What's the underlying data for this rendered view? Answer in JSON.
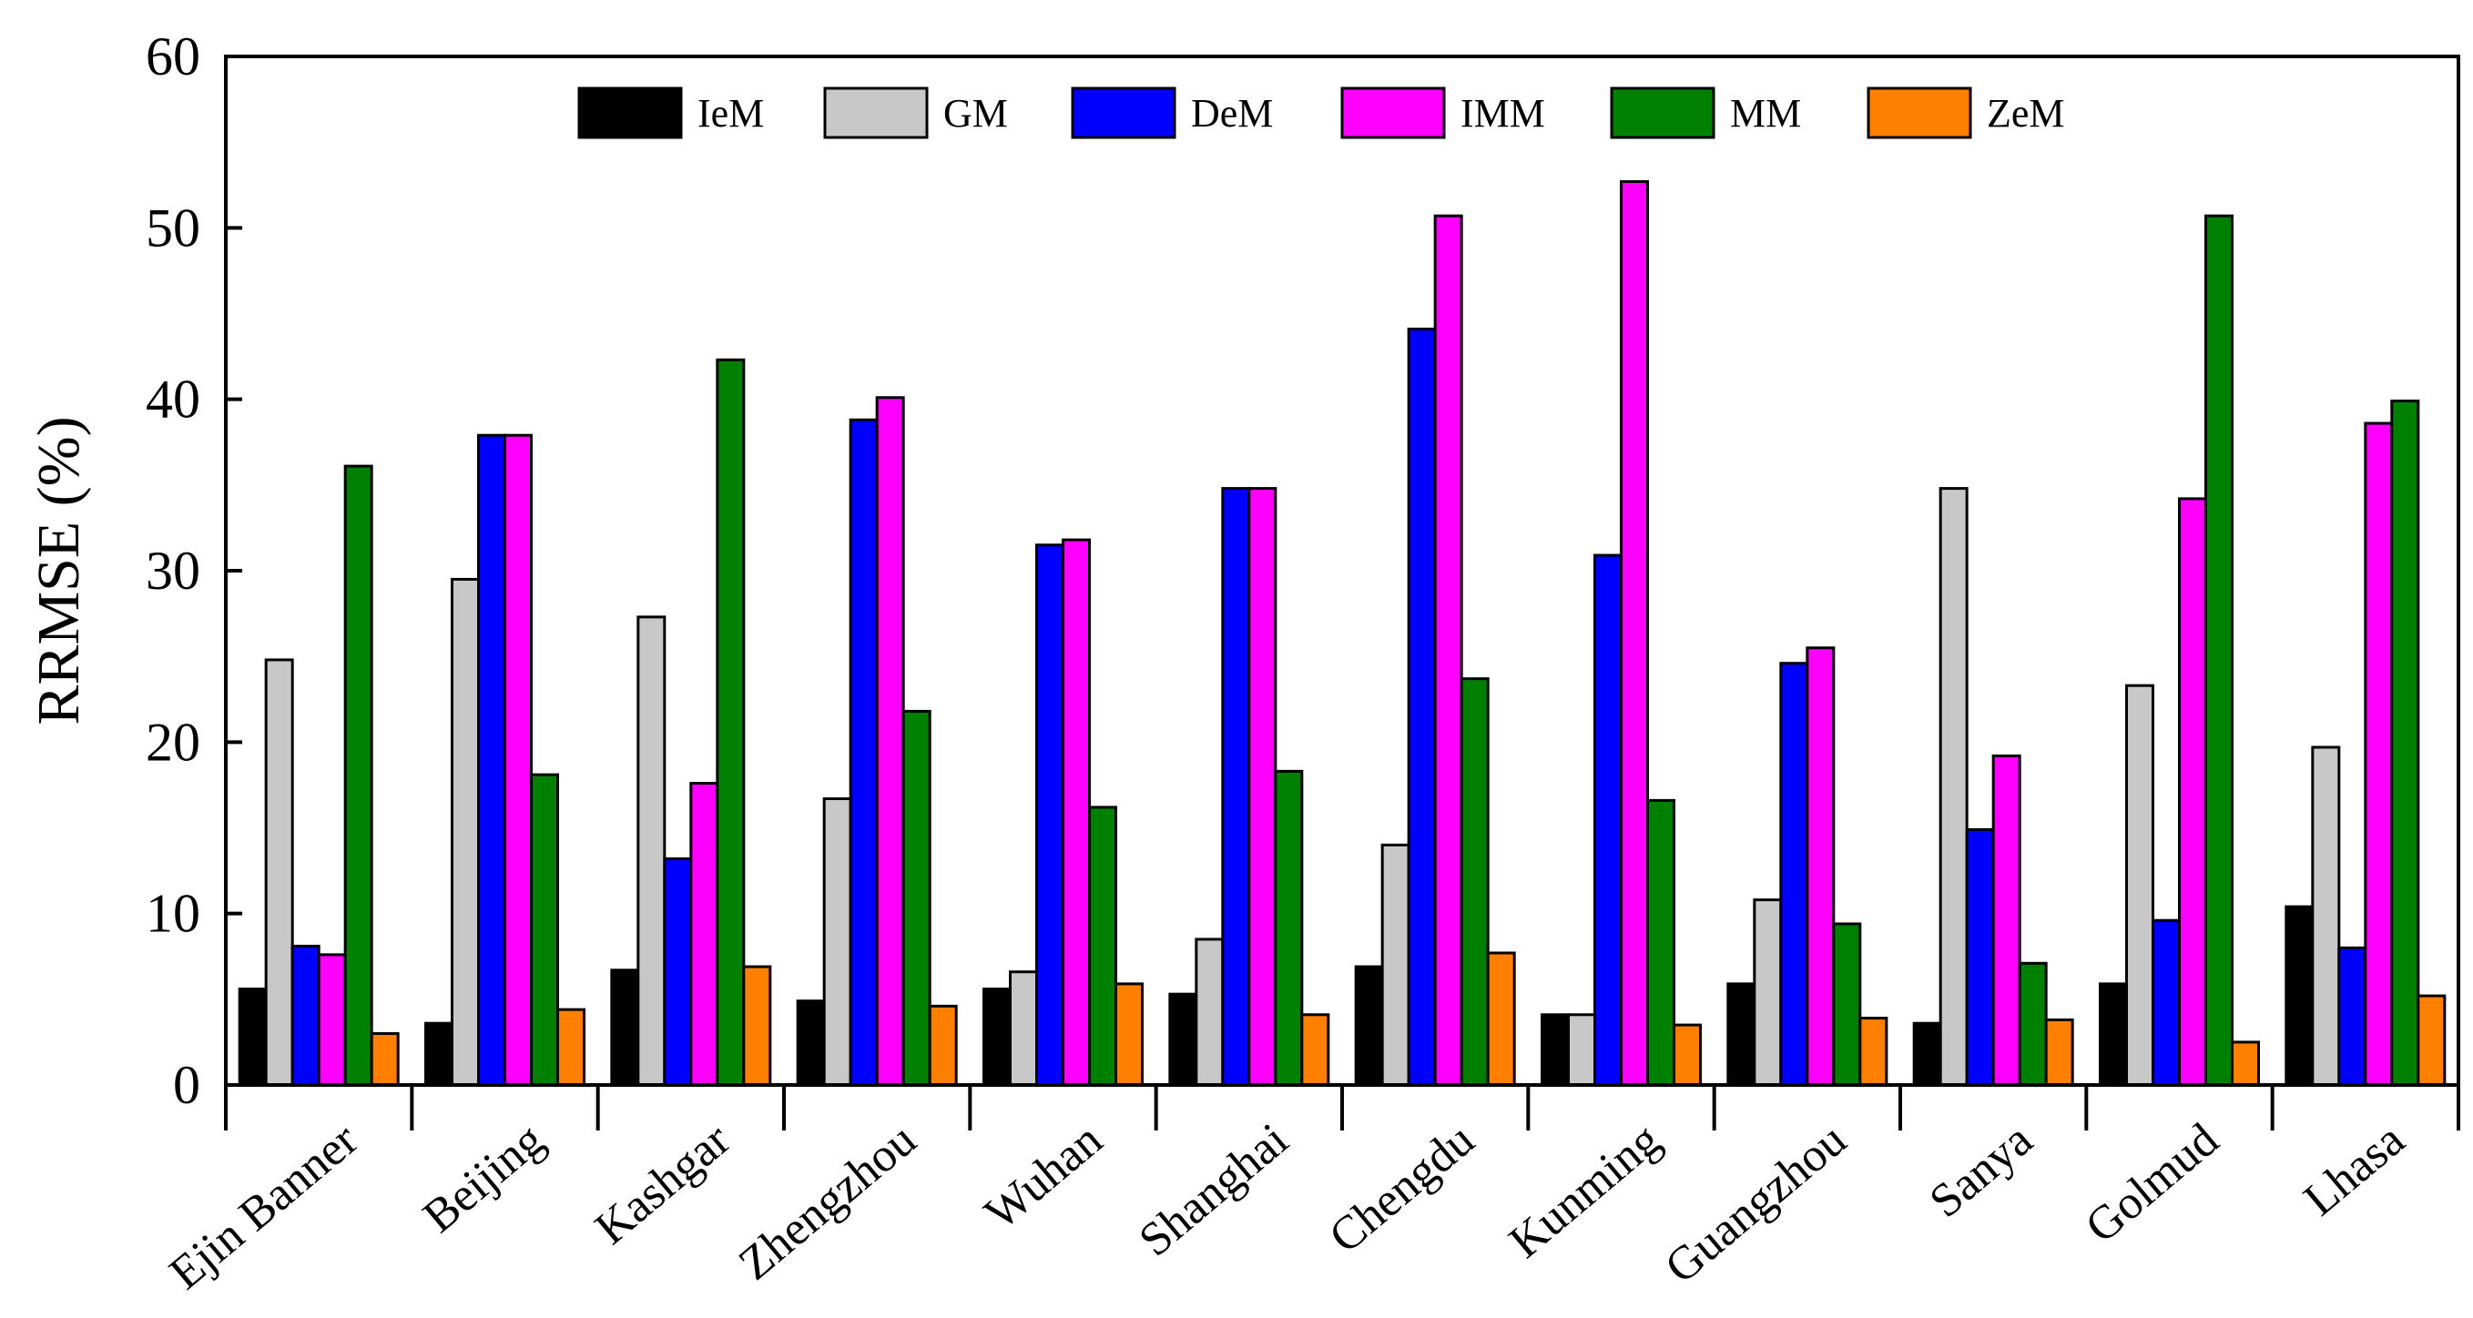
{
  "chart_data": {
    "type": "bar",
    "title": "",
    "xlabel": "",
    "ylabel": "RRMSE (%)",
    "ylim": [
      0,
      60
    ],
    "yticks": [
      "0",
      "10",
      "20",
      "30",
      "40",
      "50",
      "60"
    ],
    "grid": false,
    "legend_position": "top",
    "categories": [
      "Ejin Banner",
      "Beijing",
      "Kashgar",
      "Zhengzhou",
      "Wuhan",
      "Shanghai",
      "Chengdu",
      "Kunming",
      "Guangzhou",
      "Sanya",
      "Golmud",
      "Lhasa"
    ],
    "series": [
      {
        "name": "IeM",
        "color": "#000000",
        "values": [
          5.6,
          3.6,
          6.7,
          4.9,
          5.6,
          5.3,
          6.9,
          4.1,
          5.9,
          3.6,
          5.9,
          10.4
        ]
      },
      {
        "name": "GM",
        "color": "#c8c8c8",
        "values": [
          24.8,
          29.5,
          27.3,
          16.7,
          6.6,
          8.5,
          14.0,
          4.1,
          10.8,
          34.8,
          23.3,
          19.7
        ]
      },
      {
        "name": "DeM",
        "color": "#0000ff",
        "values": [
          8.1,
          37.9,
          13.2,
          38.8,
          31.5,
          34.8,
          44.1,
          30.9,
          24.6,
          14.9,
          9.6,
          8.0
        ]
      },
      {
        "name": "IMM",
        "color": "#ff00ff",
        "values": [
          7.6,
          37.9,
          17.6,
          40.1,
          31.8,
          34.8,
          50.7,
          52.7,
          25.5,
          19.2,
          34.2,
          38.6
        ]
      },
      {
        "name": "MM",
        "color": "#008000",
        "values": [
          36.1,
          18.1,
          42.3,
          21.8,
          16.2,
          18.3,
          23.7,
          16.6,
          9.4,
          7.1,
          50.7,
          39.9
        ]
      },
      {
        "name": "ZeM",
        "color": "#ff8000",
        "values": [
          3.0,
          4.4,
          6.9,
          4.6,
          5.9,
          4.1,
          7.7,
          3.5,
          3.9,
          3.8,
          2.5,
          5.2
        ]
      }
    ]
  }
}
